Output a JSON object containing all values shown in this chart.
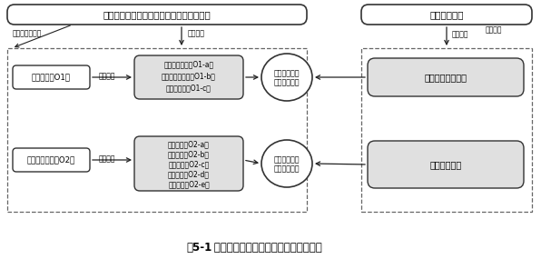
{
  "title_bold": "图5-1",
  "title_normal": " 农村宅基地有偿使用实施效应评价思路",
  "top_left_box": "农村宅基地有偿使用社会生态系统分析框架",
  "top_right_box": "效应评价模型",
  "label_theory": "理论基础",
  "label_variables": "各层级变量识别",
  "label_model_select": "模型选择",
  "label_empirical": "实证分析",
  "box_o1": "改革效应（O1）",
  "box_o2": "社会生态效应（O2）",
  "label_factor1": "要素识别",
  "label_factor2": "要素识别",
  "box_indicators1_lines": [
    "政策实施情况（O1-a）",
    "政策目标完成度（O1-b）",
    "农户满意度（O1-c）"
  ],
  "box_indicators2_lines": [
    "经济效应（O2-a）",
    "社会效应（O2-b）",
    "环境效应（O2-c）",
    "文化效应（O2-d）",
    "自治水平（O2-e）"
  ],
  "circle1_line1": "指标体系构建",
  "circle1_line2": "指标权重确定",
  "circle2_line1": "指标体系构建",
  "circle2_line2": "指标权重确定",
  "model_box1": "模糊综合评价模型",
  "model_box2": "综合评价模型",
  "bg_color": "#ffffff",
  "box_fill_light": "#e0e0e0",
  "dashed_color": "#666666",
  "solid_color": "#333333",
  "arrow_color": "#222222"
}
